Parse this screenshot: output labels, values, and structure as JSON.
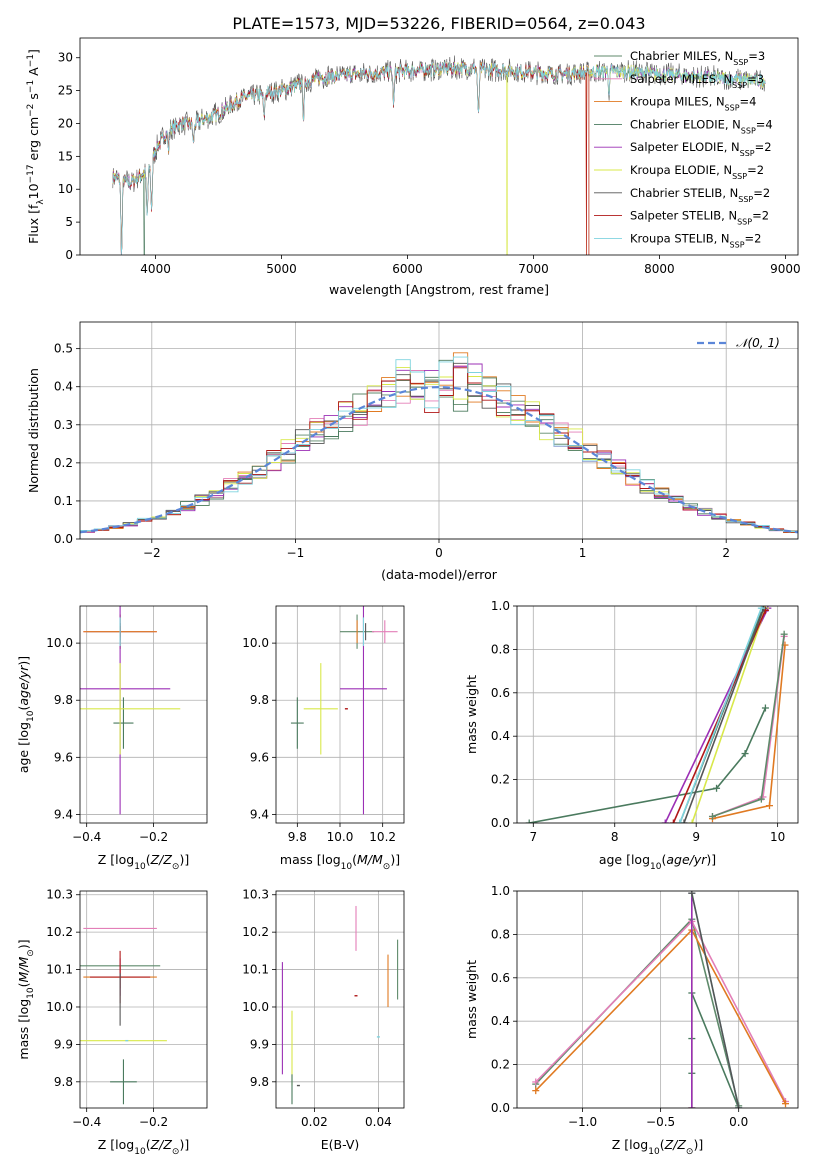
{
  "figure_title": "PLATE=1573, MJD=53226, FIBERID=0564, z=0.043",
  "series": [
    {
      "name": "Chabrier MILES, N<sub>SSP</sub>=3",
      "label": "Chabrier MILES, N",
      "sub": "SSP",
      "suffix": "=3",
      "color": "#5f8a6b"
    },
    {
      "name": "Salpeter MILES",
      "label": "Salpeter MILES, N",
      "sub": "SSP",
      "suffix": "=3",
      "color": "#e37fb8"
    },
    {
      "name": "Kroupa MILES",
      "label": "Kroupa MILES, N",
      "sub": "SSP",
      "suffix": "=4",
      "color": "#e07a22"
    },
    {
      "name": "Chabrier ELODIE",
      "label": "Chabrier ELODIE, N",
      "sub": "SSP",
      "suffix": "=4",
      "color": "#4a7a5e"
    },
    {
      "name": "Salpeter ELODIE",
      "label": "Salpeter ELODIE, N",
      "sub": "SSP",
      "suffix": "=2",
      "color": "#9b2fb5"
    },
    {
      "name": "Kroupa ELODIE",
      "label": "Kroupa ELODIE, N",
      "sub": "SSP",
      "suffix": "=2",
      "color": "#d8e84a"
    },
    {
      "name": "Chabrier STELIB",
      "label": "Chabrier STELIB, N",
      "sub": "SSP",
      "suffix": "=2",
      "color": "#555555"
    },
    {
      "name": "Salpeter STELIB",
      "label": "Salpeter STELIB, N",
      "sub": "SSP",
      "suffix": "=2",
      "color": "#b01818"
    },
    {
      "name": "Kroupa STELIB",
      "label": "Kroupa STELIB, N",
      "sub": "SSP",
      "suffix": "=2",
      "color": "#7fd3df"
    }
  ],
  "chart_data": [
    {
      "id": "spectrum",
      "type": "line",
      "xlabel": "wavelength [Angstrom, rest frame]",
      "ylabel": "Flux [f",
      "xlim": [
        3400,
        9100
      ],
      "ylim": [
        0,
        33
      ],
      "xticks": [
        4000,
        5000,
        6000,
        7000,
        8000,
        9000
      ],
      "yticks": [
        0,
        5,
        10,
        15,
        20,
        25,
        30
      ],
      "continuum": {
        "x": [
          3650,
          3800,
          3950,
          4000,
          4100,
          4200,
          4300,
          4500,
          4700,
          5000,
          5300,
          5600,
          6000,
          6400,
          6800,
          7200,
          7600,
          8000,
          8400,
          8850
        ],
        "y": [
          12,
          11,
          13,
          16,
          19,
          20,
          20,
          21.5,
          24,
          25,
          27,
          27.5,
          28,
          28.5,
          28,
          27.5,
          28,
          27.5,
          27,
          26.5
        ]
      },
      "dips": [
        [
          3730,
          0
        ],
        [
          3933,
          6
        ],
        [
          3968,
          7
        ],
        [
          4102,
          16
        ],
        [
          4300,
          17
        ],
        [
          4861,
          21
        ],
        [
          5175,
          21
        ],
        [
          5890,
          23
        ],
        [
          6563,
          21
        ],
        [
          7600,
          25
        ]
      ],
      "dropouts": [
        {
          "series": 3,
          "x": 3910
        },
        {
          "series": 5,
          "x": 6790
        },
        {
          "series": 2,
          "x": 7420
        },
        {
          "series": 7,
          "x": 7420
        }
      ],
      "legend": "top-right"
    },
    {
      "id": "residuals",
      "type": "step",
      "xlabel": "(data-model)/error",
      "ylabel": "Normed distribution",
      "xlim": [
        -2.5,
        2.5
      ],
      "ylim": [
        0,
        0.57
      ],
      "xticks": [
        -2,
        -1,
        0,
        1,
        2
      ],
      "yticks": [
        0,
        0.1,
        0.2,
        0.3,
        0.4,
        0.5
      ],
      "bin_width": 0.1,
      "gauss_label": "𝒩(0, 1)",
      "legend": "top-right"
    },
    {
      "id": "age_vs_Z",
      "type": "errorbar",
      "xlabel": "Z [log",
      "ylabel": "age  [log",
      "xlim": [
        -0.42,
        -0.04
      ],
      "ylim": [
        9.37,
        10.13
      ],
      "xticks": [
        -0.4,
        -0.2
      ],
      "yticks": [
        9.4,
        9.6,
        9.8,
        10.0
      ],
      "points": [
        {
          "s": 0,
          "x": -0.3,
          "y": 10.04,
          "ex": 0.1,
          "ey": 0.06
        },
        {
          "s": 1,
          "x": -0.3,
          "y": 10.04,
          "ex": 0.11,
          "ey": 0.03
        },
        {
          "s": 2,
          "x": -0.3,
          "y": 10.04,
          "ex": 0.11,
          "ey": 0.06
        },
        {
          "s": 3,
          "x": -0.29,
          "y": 9.72,
          "ex": 0.03,
          "ey": 0.09
        },
        {
          "s": 4,
          "x": -0.3,
          "y": 9.84,
          "ex": 0.15,
          "ey": 0.44
        },
        {
          "s": 5,
          "x": -0.3,
          "y": 9.77,
          "ex": 0.18,
          "ey": 0.16
        },
        {
          "s": 6,
          "x": -0.3,
          "y": 10.04,
          "ex": 0.0,
          "ey": 0.03
        },
        {
          "s": 7,
          "x": -0.3,
          "y": 10.04,
          "ex": 0.0,
          "ey": 0.02
        },
        {
          "s": 8,
          "x": -0.3,
          "y": 10.04,
          "ex": 0.0,
          "ey": 0.05
        }
      ]
    },
    {
      "id": "age_vs_mass",
      "type": "errorbar",
      "xlabel": "mass [log",
      "xlim": [
        9.7,
        10.3
      ],
      "ylim": [
        9.37,
        10.13
      ],
      "xticks": [
        9.8,
        10.0,
        10.2
      ],
      "yticks": [
        9.4,
        9.6,
        9.8,
        10.0
      ],
      "points": [
        {
          "s": 0,
          "x": 10.08,
          "y": 10.04,
          "ex": 0.08,
          "ey": 0.06
        },
        {
          "s": 1,
          "x": 10.21,
          "y": 10.04,
          "ex": 0.06,
          "ey": 0.04
        },
        {
          "s": 2,
          "x": 10.08,
          "y": 10.04,
          "ex": 0.0,
          "ey": 0.04
        },
        {
          "s": 3,
          "x": 9.8,
          "y": 9.72,
          "ex": 0.03,
          "ey": 0.09
        },
        {
          "s": 4,
          "x": 10.11,
          "y": 9.84,
          "ex": 0.11,
          "ey": 0.44
        },
        {
          "s": 5,
          "x": 9.91,
          "y": 9.77,
          "ex": 0.08,
          "ey": 0.16
        },
        {
          "s": 6,
          "x": 10.12,
          "y": 10.04,
          "ex": 0.0,
          "ey": 0.03
        },
        {
          "s": 7,
          "x": 10.03,
          "y": 9.77,
          "ex": 0.0,
          "ey": 0.0
        },
        {
          "s": 8,
          "x": 10.11,
          "y": 10.04,
          "ex": 0.0,
          "ey": 0.05
        }
      ]
    },
    {
      "id": "mass_vs_Z",
      "type": "errorbar",
      "xlabel": "Z [log",
      "ylabel": "mass [log",
      "xlim": [
        -0.42,
        -0.04
      ],
      "ylim": [
        9.73,
        10.31
      ],
      "xticks": [
        -0.4,
        -0.2
      ],
      "yticks": [
        9.8,
        9.9,
        10.0,
        10.1,
        10.2,
        10.3
      ],
      "points": [
        {
          "s": 1,
          "x": -0.3,
          "y": 10.21,
          "ex": 0.11,
          "ey": 0.0
        },
        {
          "s": 2,
          "x": -0.3,
          "y": 10.08,
          "ex": 0.11,
          "ey": 0.03
        },
        {
          "s": 0,
          "x": -0.3,
          "y": 10.11,
          "ex": 0.12,
          "ey": 0.0
        },
        {
          "s": 3,
          "x": -0.29,
          "y": 9.8,
          "ex": 0.04,
          "ey": 0.06
        },
        {
          "s": 4,
          "x": -0.3,
          "y": 10.08,
          "ex": 0.0,
          "ey": 0.05
        },
        {
          "s": 5,
          "x": -0.29,
          "y": 9.91,
          "ex": 0.13,
          "ey": 0.0
        },
        {
          "s": 7,
          "x": -0.3,
          "y": 10.08,
          "ex": 0.09,
          "ey": 0.07
        },
        {
          "s": 8,
          "x": -0.28,
          "y": 9.91,
          "ex": 0.0,
          "ey": 0.0
        },
        {
          "s": 6,
          "x": -0.3,
          "y": 10.02,
          "ex": 0.0,
          "ey": 0.07
        }
      ]
    },
    {
      "id": "mass_vs_ebv",
      "type": "errorbar",
      "xlabel": "E(B-V)",
      "xlim": [
        0.008,
        0.048
      ],
      "ylim": [
        9.73,
        10.31
      ],
      "xticks": [
        0.02,
        0.04
      ],
      "yticks": [
        9.8,
        9.9,
        10.0,
        10.1,
        10.2,
        10.3
      ],
      "points": [
        {
          "s": 1,
          "x": 0.033,
          "y": 10.21,
          "ex": 0,
          "ey": 0.06
        },
        {
          "s": 2,
          "x": 0.043,
          "y": 10.07,
          "ex": 0,
          "ey": 0.07
        },
        {
          "s": 0,
          "x": 0.046,
          "y": 10.1,
          "ex": 0,
          "ey": 0.08
        },
        {
          "s": 4,
          "x": 0.01,
          "y": 9.97,
          "ex": 0,
          "ey": 0.15
        },
        {
          "s": 5,
          "x": 0.013,
          "y": 9.89,
          "ex": 0,
          "ey": 0.1
        },
        {
          "s": 3,
          "x": 0.013,
          "y": 9.78,
          "ex": 0,
          "ey": 0.04
        },
        {
          "s": 7,
          "x": 0.033,
          "y": 10.03,
          "ex": 0,
          "ey": 0.0
        },
        {
          "s": 8,
          "x": 0.04,
          "y": 9.92,
          "ex": 0,
          "ey": 0.0
        },
        {
          "s": 6,
          "x": 0.015,
          "y": 9.79,
          "ex": 0,
          "ey": 0.0
        }
      ]
    },
    {
      "id": "weight_vs_age",
      "type": "line",
      "xlabel": "age  [log",
      "ylabel": "mass weight",
      "xlim": [
        6.8,
        10.25
      ],
      "ylim": [
        0,
        1
      ],
      "xticks": [
        7,
        8,
        9,
        10
      ],
      "yticks": [
        0,
        0.2,
        0.4,
        0.6,
        0.8,
        1.0
      ],
      "lines": [
        {
          "s": 3,
          "x": [
            6.95,
            9.25,
            9.6,
            9.85
          ],
          "y": [
            0.0,
            0.16,
            0.32,
            0.53
          ]
        },
        {
          "s": 3,
          "x": [
            8.8,
            9.82
          ],
          "y": [
            0.0,
            0.99
          ]
        },
        {
          "s": 1,
          "x": [
            9.2,
            9.82,
            10.08
          ],
          "y": [
            0.03,
            0.12,
            0.86
          ]
        },
        {
          "s": 2,
          "x": [
            9.2,
            9.9,
            10.09
          ],
          "y": [
            0.02,
            0.08,
            0.82
          ]
        },
        {
          "s": 0,
          "x": [
            9.2,
            9.8,
            10.08
          ],
          "y": [
            0.03,
            0.11,
            0.87
          ]
        },
        {
          "s": 4,
          "x": [
            8.62,
            9.88
          ],
          "y": [
            0.0,
            0.99
          ]
        },
        {
          "s": 5,
          "x": [
            8.95,
            9.85
          ],
          "y": [
            0.0,
            0.99
          ]
        },
        {
          "s": 7,
          "x": [
            8.72,
            9.85
          ],
          "y": [
            0.0,
            0.98
          ]
        },
        {
          "s": 6,
          "x": [
            8.85,
            9.83
          ],
          "y": [
            0.0,
            0.99
          ]
        },
        {
          "s": 8,
          "x": [
            8.8,
            9.8
          ],
          "y": [
            0.0,
            0.99
          ]
        }
      ]
    },
    {
      "id": "weight_vs_Z",
      "type": "line",
      "xlabel": "Z [log",
      "ylabel": "mass weight",
      "xlim": [
        -1.42,
        0.38
      ],
      "ylim": [
        0,
        1
      ],
      "xticks": [
        -1.0,
        -0.5,
        0.0
      ],
      "yticks": [
        0,
        0.2,
        0.4,
        0.6,
        0.8,
        1.0
      ],
      "lines": [
        {
          "s": 0,
          "x": [
            -1.3,
            -0.3,
            0.0
          ],
          "y": [
            0.11,
            0.87,
            0.01
          ]
        },
        {
          "s": 1,
          "x": [
            -1.3,
            -0.3,
            0.3
          ],
          "y": [
            0.12,
            0.86,
            0.03
          ]
        },
        {
          "s": 2,
          "x": [
            -1.3,
            -0.3,
            0.3
          ],
          "y": [
            0.08,
            0.82,
            0.02
          ]
        },
        {
          "s": 3,
          "x": [
            -0.3,
            -0.3,
            -0.3,
            -0.3,
            0.0
          ],
          "y": [
            0.0,
            0.16,
            0.32,
            0.53,
            0.0
          ]
        },
        {
          "s": 5,
          "x": [
            -0.3,
            -0.3
          ],
          "y": [
            0.0,
            0.99
          ]
        },
        {
          "s": 4,
          "x": [
            -0.3,
            -0.3
          ],
          "y": [
            0.0,
            0.99
          ]
        },
        {
          "s": 8,
          "x": [
            -0.3,
            0.0
          ],
          "y": [
            0.99,
            0.0
          ]
        },
        {
          "s": 6,
          "x": [
            -0.3,
            0.0
          ],
          "y": [
            0.99,
            0.0
          ]
        }
      ]
    }
  ]
}
